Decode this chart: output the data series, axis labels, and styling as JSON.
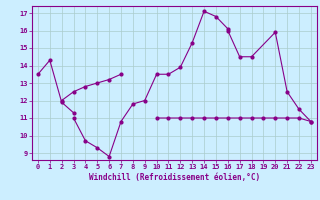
{
  "xlabel": "Windchill (Refroidissement éolien,°C)",
  "xlim": [
    -0.5,
    23.5
  ],
  "ylim": [
    8.6,
    17.4
  ],
  "yticks": [
    9,
    10,
    11,
    12,
    13,
    14,
    15,
    16,
    17
  ],
  "xticks": [
    0,
    1,
    2,
    3,
    4,
    5,
    6,
    7,
    8,
    9,
    10,
    11,
    12,
    13,
    14,
    15,
    16,
    17,
    18,
    19,
    20,
    21,
    22,
    23
  ],
  "bg_color": "#cceeff",
  "line_color": "#880088",
  "grid_color": "#aacccc",
  "series1_x": [
    0,
    1,
    2,
    3
  ],
  "series1_y": [
    13.5,
    14.3,
    11.9,
    11.3
  ],
  "series2_x": [
    3,
    4,
    5,
    6,
    7,
    8,
    9,
    10,
    11,
    12,
    13,
    14,
    15,
    16
  ],
  "series2_y": [
    11.0,
    9.7,
    9.3,
    8.8,
    10.8,
    11.8,
    12.0,
    13.5,
    13.5,
    13.9,
    15.3,
    17.1,
    16.8,
    16.1
  ],
  "series3_x": [
    2,
    3,
    4,
    5,
    6,
    7
  ],
  "series3_y": [
    12.0,
    12.5,
    12.8,
    13.0,
    13.2,
    13.5
  ],
  "series4_x": [
    10,
    11,
    12,
    13,
    14,
    15,
    16,
    17,
    18,
    19,
    20,
    21,
    22,
    23
  ],
  "series4_y": [
    11.0,
    11.0,
    11.0,
    11.0,
    11.0,
    11.0,
    11.0,
    11.0,
    11.0,
    11.0,
    11.0,
    11.0,
    11.0,
    10.8
  ],
  "series5_x": [
    16,
    17,
    18,
    20,
    21,
    22,
    23
  ],
  "series5_y": [
    16.0,
    14.5,
    14.5,
    15.9,
    12.5,
    11.5,
    10.8
  ]
}
